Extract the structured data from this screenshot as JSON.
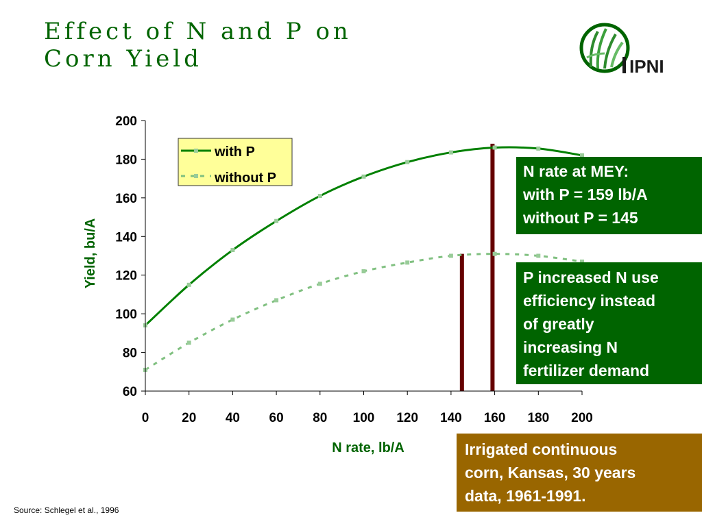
{
  "slide": {
    "title_line1": "Effect of N and P on",
    "title_line2": "Corn Yield",
    "logo_text": "IPNI",
    "source": "Source: Schlegel et al., 1996"
  },
  "annotations": {
    "mey": [
      "N rate at MEY:",
      "with P = 159 lb/A",
      "without P = 145"
    ],
    "efficiency": [
      "P increased N use",
      "efficiency instead",
      "of greatly",
      "increasing N",
      "fertilizer demand"
    ],
    "irrigated": [
      "Irrigated continuous",
      "corn, Kansas, 30 years",
      "data, 1961-1991."
    ]
  },
  "colors": {
    "title": "#006400",
    "with_p": "#008000",
    "without_p": "#80C080",
    "marker": "#99CC99",
    "mey_line": "#660000",
    "legend_bg": "#FFFF99",
    "box_green": "#006400",
    "box_brown": "#996600"
  },
  "chart_data": {
    "type": "line",
    "xlabel": "N rate, lb/A",
    "ylabel": "Yield, bu/A",
    "xlim": [
      0,
      200
    ],
    "ylim": [
      60,
      200
    ],
    "xticks": [
      0,
      20,
      40,
      60,
      80,
      100,
      120,
      140,
      160,
      180,
      200
    ],
    "yticks": [
      60,
      80,
      100,
      120,
      140,
      160,
      180,
      200
    ],
    "grid": false,
    "legend_position": "top-left",
    "series": [
      {
        "name": "with P",
        "style": "solid",
        "x": [
          0,
          20,
          40,
          60,
          80,
          100,
          120,
          140,
          160,
          180,
          200
        ],
        "y": [
          94,
          115,
          133,
          148,
          161,
          171,
          178.5,
          183.5,
          186,
          185.5,
          182
        ]
      },
      {
        "name": "without P",
        "style": "dashed",
        "x": [
          0,
          20,
          40,
          60,
          80,
          100,
          120,
          140,
          160,
          180,
          200
        ],
        "y": [
          71,
          85,
          97,
          107,
          115.5,
          122,
          126.5,
          130,
          131,
          130,
          127
        ]
      }
    ],
    "mey_lines": [
      {
        "x": 145,
        "y_top": 131
      },
      {
        "x": 159,
        "y_top": 188
      }
    ]
  }
}
